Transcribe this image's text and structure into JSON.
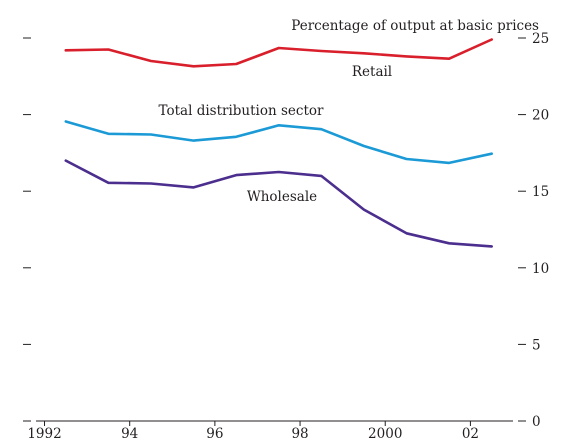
{
  "chart_data": {
    "type": "line",
    "title": "",
    "ylabel": "Percentage of output at basic prices",
    "xlabel": "",
    "xlim": [
      1991.8,
      2003.0
    ],
    "ylim": [
      0,
      25
    ],
    "x_ticks": [
      1992,
      1994,
      1996,
      1998,
      2000,
      2002
    ],
    "x_tick_labels": [
      "1992",
      "94",
      "96",
      "98",
      "2000",
      "02"
    ],
    "y_ticks": [
      0,
      5,
      10,
      15,
      20,
      25
    ],
    "y_tick_labels": [
      "0",
      "5",
      "10",
      "15",
      "20",
      "25"
    ],
    "grid": false,
    "series": [
      {
        "name": "Retail",
        "color": "#d91f2b",
        "x": [
          1992.5,
          1993.5,
          1994.5,
          1995.5,
          1996.5,
          1997.5,
          1998.5,
          1999.5,
          2000.5,
          2001.5,
          2002.5
        ],
        "values": [
          24.2,
          24.25,
          23.5,
          23.15,
          23.3,
          24.35,
          24.15,
          24.0,
          23.8,
          23.65,
          24.9
        ]
      },
      {
        "name": "Total distribution sector",
        "color": "#1b9ad6",
        "x": [
          1992.5,
          1993.5,
          1994.5,
          1995.5,
          1996.5,
          1997.5,
          1998.5,
          1999.5,
          2000.5,
          2001.5,
          2002.5
        ],
        "values": [
          19.55,
          18.75,
          18.7,
          18.3,
          18.55,
          19.3,
          19.05,
          17.95,
          17.1,
          16.85,
          17.45
        ]
      },
      {
        "name": "Wholesale",
        "color": "#4b2e8e",
        "x": [
          1992.5,
          1993.5,
          1994.5,
          1995.5,
          1996.5,
          1997.5,
          1998.5,
          1999.5,
          2000.5,
          2001.5,
          2002.5
        ],
        "values": [
          17.0,
          15.55,
          15.5,
          15.25,
          16.05,
          16.25,
          16.0,
          13.8,
          12.25,
          11.6,
          11.4
        ]
      }
    ]
  }
}
